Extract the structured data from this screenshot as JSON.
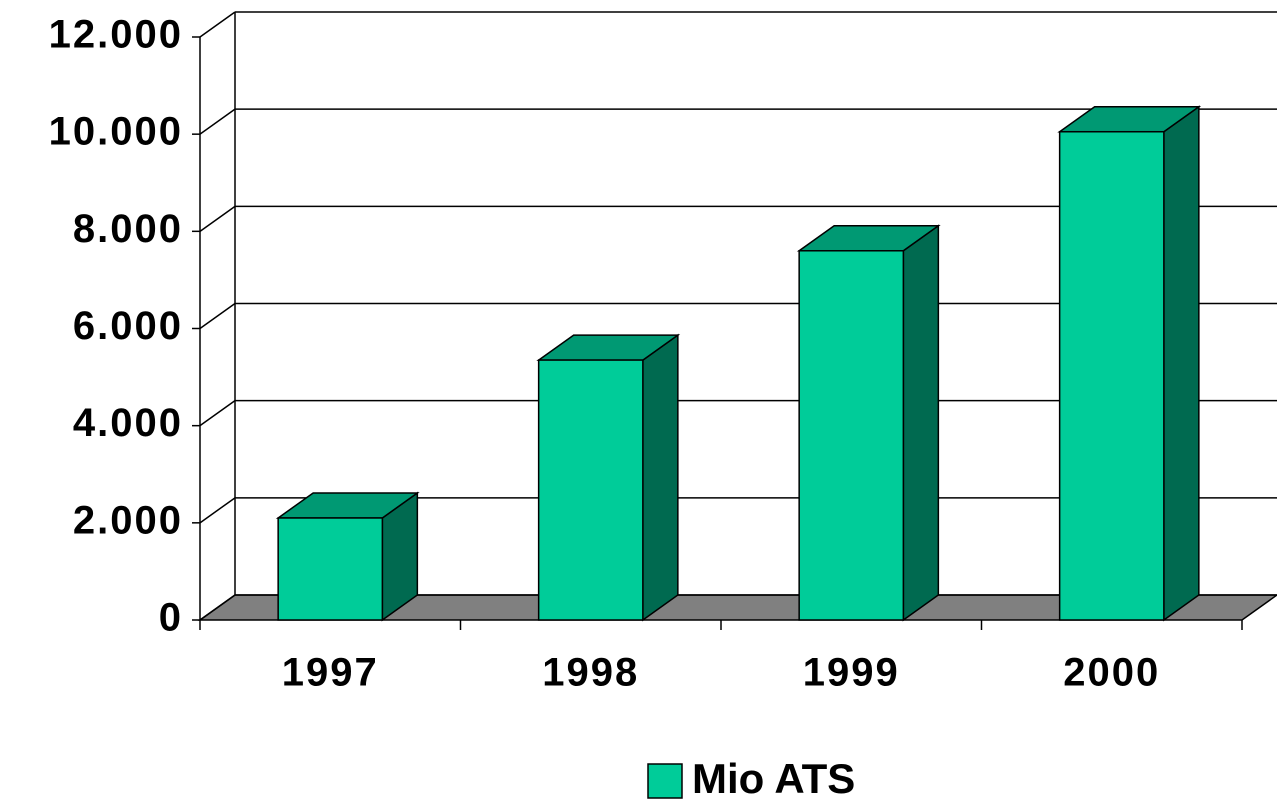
{
  "chart_data": {
    "type": "bar3d",
    "categories": [
      "1997",
      "1998",
      "1999",
      "2000"
    ],
    "series": [
      {
        "name": "Mio ATS",
        "color": "#00cc99",
        "values": [
          2100,
          5350,
          7600,
          10050
        ]
      }
    ],
    "ylim": [
      0,
      12000
    ],
    "yticks": [
      0,
      {
        "value": 2000,
        "label": "2.000"
      },
      {
        "value": 4000,
        "label": "4.000"
      },
      {
        "value": 6000,
        "label": "6.000"
      },
      {
        "value": 8000,
        "label": "8.000"
      },
      {
        "value": 10000,
        "label": "10.000"
      },
      {
        "value": 12000,
        "label": "12.000"
      }
    ],
    "grid": true
  }
}
